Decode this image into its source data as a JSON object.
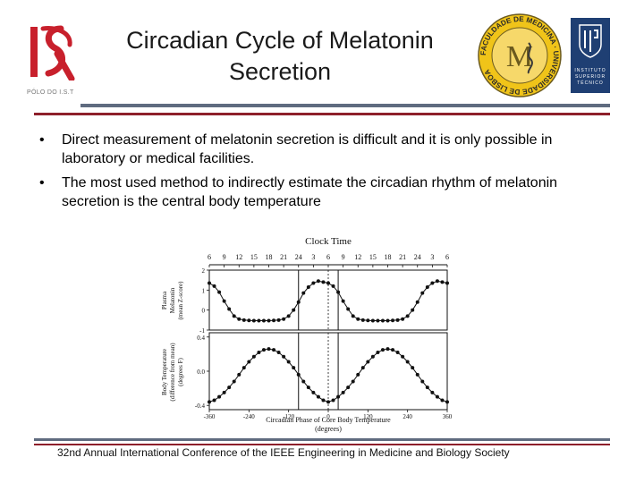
{
  "header": {
    "title_line1": "Circadian Cycle of Melatonin",
    "title_line2": "Secretion",
    "isr_logo_text": "ISR",
    "isr_sub": "PÓLO DO I.S.T",
    "seal_text": "FACULDADE DE MEDICINA · UNIVERSIDADE DE LISBOA",
    "ist_lines": [
      "INSTITUTO",
      "SUPERIOR",
      "TÉCNICO"
    ]
  },
  "bullets": [
    "Direct measurement of melatonin secretion is difficult and it is only possible in laboratory or medical facilities.",
    "The most used method to indirectly estimate the circadian rhythm of melatonin secretion is the central body temperature"
  ],
  "footer": {
    "text": "32nd Annual International Conference of the IEEE Engineering in Medicine and Biology Society"
  },
  "chart_data": [
    {
      "type": "scatter",
      "panel": "top",
      "title": "Clock Time",
      "top_ticks": [
        "6",
        "9",
        "12",
        "15",
        "18",
        "21",
        "24",
        "3",
        "6",
        "9",
        "12",
        "15",
        "18",
        "21",
        "24",
        "3",
        "6"
      ],
      "ylabel": [
        "Plasma",
        "Melatonin",
        "(mean Z-score)"
      ],
      "ylim": [
        -1,
        2
      ],
      "yticks": [
        "2",
        "1",
        "0",
        "-1"
      ],
      "xlim": [
        -360,
        360
      ],
      "x": [
        -360,
        -345,
        -330,
        -315,
        -300,
        -285,
        -270,
        -255,
        -240,
        -225,
        -210,
        -195,
        -180,
        -165,
        -150,
        -135,
        -120,
        -105,
        -90,
        -75,
        -60,
        -45,
        -30,
        -15,
        0,
        15,
        30,
        45,
        60,
        75,
        90,
        105,
        120,
        135,
        150,
        165,
        180,
        195,
        210,
        225,
        240,
        255,
        270,
        285,
        300,
        315,
        330,
        345,
        360
      ],
      "y": [
        1.35,
        1.2,
        0.9,
        0.45,
        0.05,
        -0.3,
        -0.45,
        -0.5,
        -0.52,
        -0.53,
        -0.53,
        -0.53,
        -0.53,
        -0.52,
        -0.5,
        -0.45,
        -0.3,
        0.0,
        0.4,
        0.85,
        1.15,
        1.35,
        1.45,
        1.4,
        1.35,
        1.2,
        0.9,
        0.45,
        0.05,
        -0.3,
        -0.45,
        -0.5,
        -0.52,
        -0.53,
        -0.53,
        -0.53,
        -0.53,
        -0.52,
        -0.5,
        -0.45,
        -0.3,
        0.0,
        0.4,
        0.85,
        1.15,
        1.35,
        1.45,
        1.4,
        1.35
      ]
    },
    {
      "type": "scatter",
      "panel": "bottom",
      "ylabel": [
        "Body Temperature",
        "(difference from mean)",
        "(degrees F)"
      ],
      "xlabel": "Circadian Phase of Core Body Temperature",
      "xlabel2": "(degrees)",
      "ylim": [
        -0.45,
        0.45
      ],
      "yticks": [
        "0.4",
        "0.0",
        "-0.4"
      ],
      "xlim": [
        -360,
        360
      ],
      "xticks": [
        "-360",
        "-240",
        "-120",
        "0",
        "120",
        "240",
        "360"
      ],
      "x": [
        -360,
        -345,
        -330,
        -315,
        -300,
        -285,
        -270,
        -255,
        -240,
        -225,
        -210,
        -195,
        -180,
        -165,
        -150,
        -135,
        -120,
        -105,
        -90,
        -75,
        -60,
        -45,
        -30,
        -15,
        0,
        15,
        30,
        45,
        60,
        75,
        90,
        105,
        120,
        135,
        150,
        165,
        180,
        195,
        210,
        225,
        240,
        255,
        270,
        285,
        300,
        315,
        330,
        345,
        360
      ],
      "y": [
        -0.36,
        -0.34,
        -0.3,
        -0.25,
        -0.19,
        -0.12,
        -0.04,
        0.04,
        0.11,
        0.17,
        0.22,
        0.25,
        0.26,
        0.25,
        0.22,
        0.17,
        0.11,
        0.04,
        -0.04,
        -0.12,
        -0.19,
        -0.25,
        -0.3,
        -0.34,
        -0.36,
        -0.34,
        -0.3,
        -0.25,
        -0.19,
        -0.12,
        -0.04,
        0.04,
        0.11,
        0.17,
        0.22,
        0.25,
        0.26,
        0.25,
        0.22,
        0.17,
        0.11,
        0.04,
        -0.04,
        -0.12,
        -0.19,
        -0.25,
        -0.3,
        -0.34,
        -0.36
      ]
    }
  ]
}
